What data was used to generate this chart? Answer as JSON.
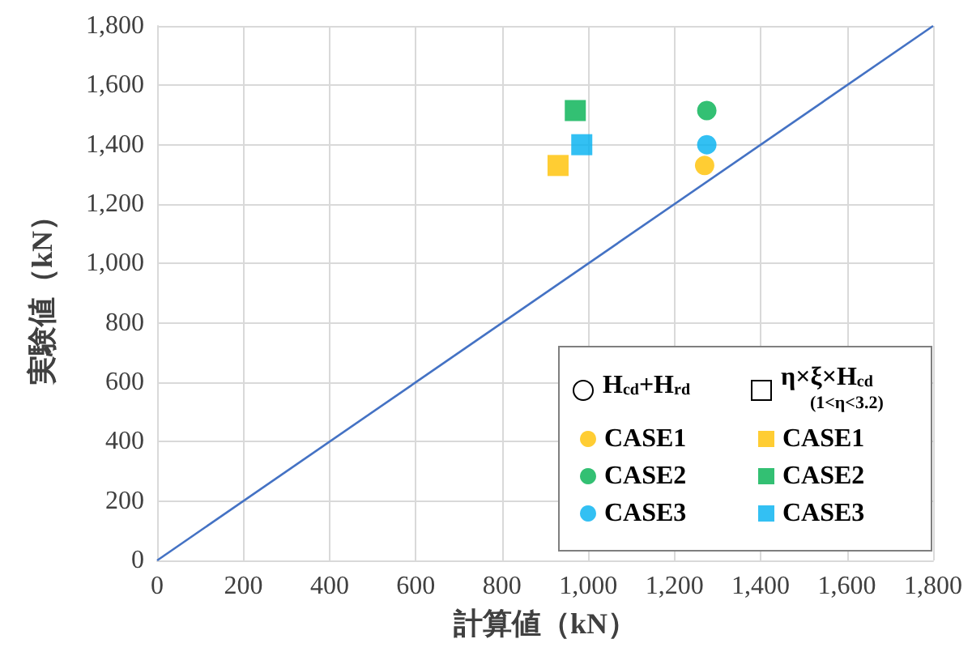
{
  "chart_data": {
    "type": "scatter",
    "xlabel": "計算値（kN）",
    "ylabel": "実験値（kN）",
    "xlim": [
      0,
      1800
    ],
    "ylim": [
      0,
      1800
    ],
    "xticks": [
      0,
      200,
      400,
      600,
      800,
      {
        "value": 1000,
        "label": "1,000"
      },
      {
        "value": 1200,
        "label": "1,200"
      },
      {
        "value": 1400,
        "label": "1,400"
      },
      {
        "value": 1600,
        "label": "1,600"
      },
      {
        "value": 1800,
        "label": "1,800"
      }
    ],
    "yticks": [
      0,
      200,
      400,
      600,
      800,
      {
        "value": 1000,
        "label": "1,000"
      },
      {
        "value": 1200,
        "label": "1,200"
      },
      {
        "value": 1400,
        "label": "1,400"
      },
      {
        "value": 1600,
        "label": "1,600"
      },
      {
        "value": 1800,
        "label": "1,800"
      }
    ],
    "grid": true,
    "legend": "bottom right",
    "annotations": [
      "H$_{cd}$+H$_{rd}$",
      "η×ξ×H$_{cd}$\n(1<η<3.2)"
    ],
    "series": [
      {
        "type": "line",
        "x": [
          0,
          1800
        ],
        "values": [
          0,
          1800
        ],
        "color": "#4472c4",
        "marker": "none"
      },
      {
        "name": "CASE1",
        "marker": "circle",
        "color": "#ffc000",
        "x": [
          1270
        ],
        "values": [
          1330
        ]
      },
      {
        "name": "CASE2",
        "marker": "circle",
        "color": "#00b050",
        "x": [
          1275
        ],
        "values": [
          1515
        ]
      },
      {
        "name": "CASE3",
        "marker": "circle",
        "color": "#00b0f0",
        "x": [
          1275
        ],
        "values": [
          1400
        ]
      },
      {
        "name": "CASE1",
        "marker": "square",
        "color": "#ffc000",
        "x": [
          930
        ],
        "values": [
          1330
        ]
      },
      {
        "name": "CASE2",
        "marker": "square",
        "color": "#00b050",
        "x": [
          970
        ],
        "values": [
          1515
        ]
      },
      {
        "name": "CASE3",
        "marker": "square",
        "color": "#00b0f0",
        "x": [
          985
        ],
        "values": [
          1400
        ]
      }
    ]
  }
}
